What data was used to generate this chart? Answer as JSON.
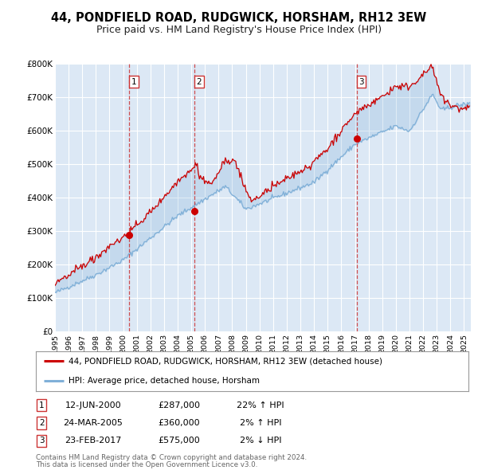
{
  "title": "44, PONDFIELD ROAD, RUDGWICK, HORSHAM, RH12 3EW",
  "subtitle": "Price paid vs. HM Land Registry's House Price Index (HPI)",
  "ylim": [
    0,
    800000
  ],
  "yticks": [
    0,
    100000,
    200000,
    300000,
    400000,
    500000,
    600000,
    700000,
    800000
  ],
  "ytick_labels": [
    "£0",
    "£100K",
    "£200K",
    "£300K",
    "£400K",
    "£500K",
    "£600K",
    "£700K",
    "£800K"
  ],
  "xlim_start": 1995.0,
  "xlim_end": 2025.5,
  "bg_color": "#ffffff",
  "plot_bg_color": "#dce8f5",
  "grid_color": "#ffffff",
  "red_line_color": "#cc0000",
  "blue_line_color": "#80b0d8",
  "sale_marker_color": "#cc0000",
  "vline_color": "#cc3333",
  "transactions": [
    {
      "num": 1,
      "date_x": 2000.44,
      "price": 287000,
      "label": "12-JUN-2000",
      "price_str": "£287,000",
      "pct": "22%",
      "arrow": "↑"
    },
    {
      "num": 2,
      "date_x": 2005.22,
      "price": 360000,
      "label": "24-MAR-2005",
      "price_str": "£360,000",
      "pct": "2%",
      "arrow": "↑"
    },
    {
      "num": 3,
      "date_x": 2017.12,
      "price": 575000,
      "label": "23-FEB-2017",
      "price_str": "£575,000",
      "pct": "2%",
      "arrow": "↓"
    }
  ],
  "legend_line1": "44, PONDFIELD ROAD, RUDGWICK, HORSHAM, RH12 3EW (detached house)",
  "legend_line2": "HPI: Average price, detached house, Horsham",
  "footer1": "Contains HM Land Registry data © Crown copyright and database right 2024.",
  "footer2": "This data is licensed under the Open Government Licence v3.0."
}
